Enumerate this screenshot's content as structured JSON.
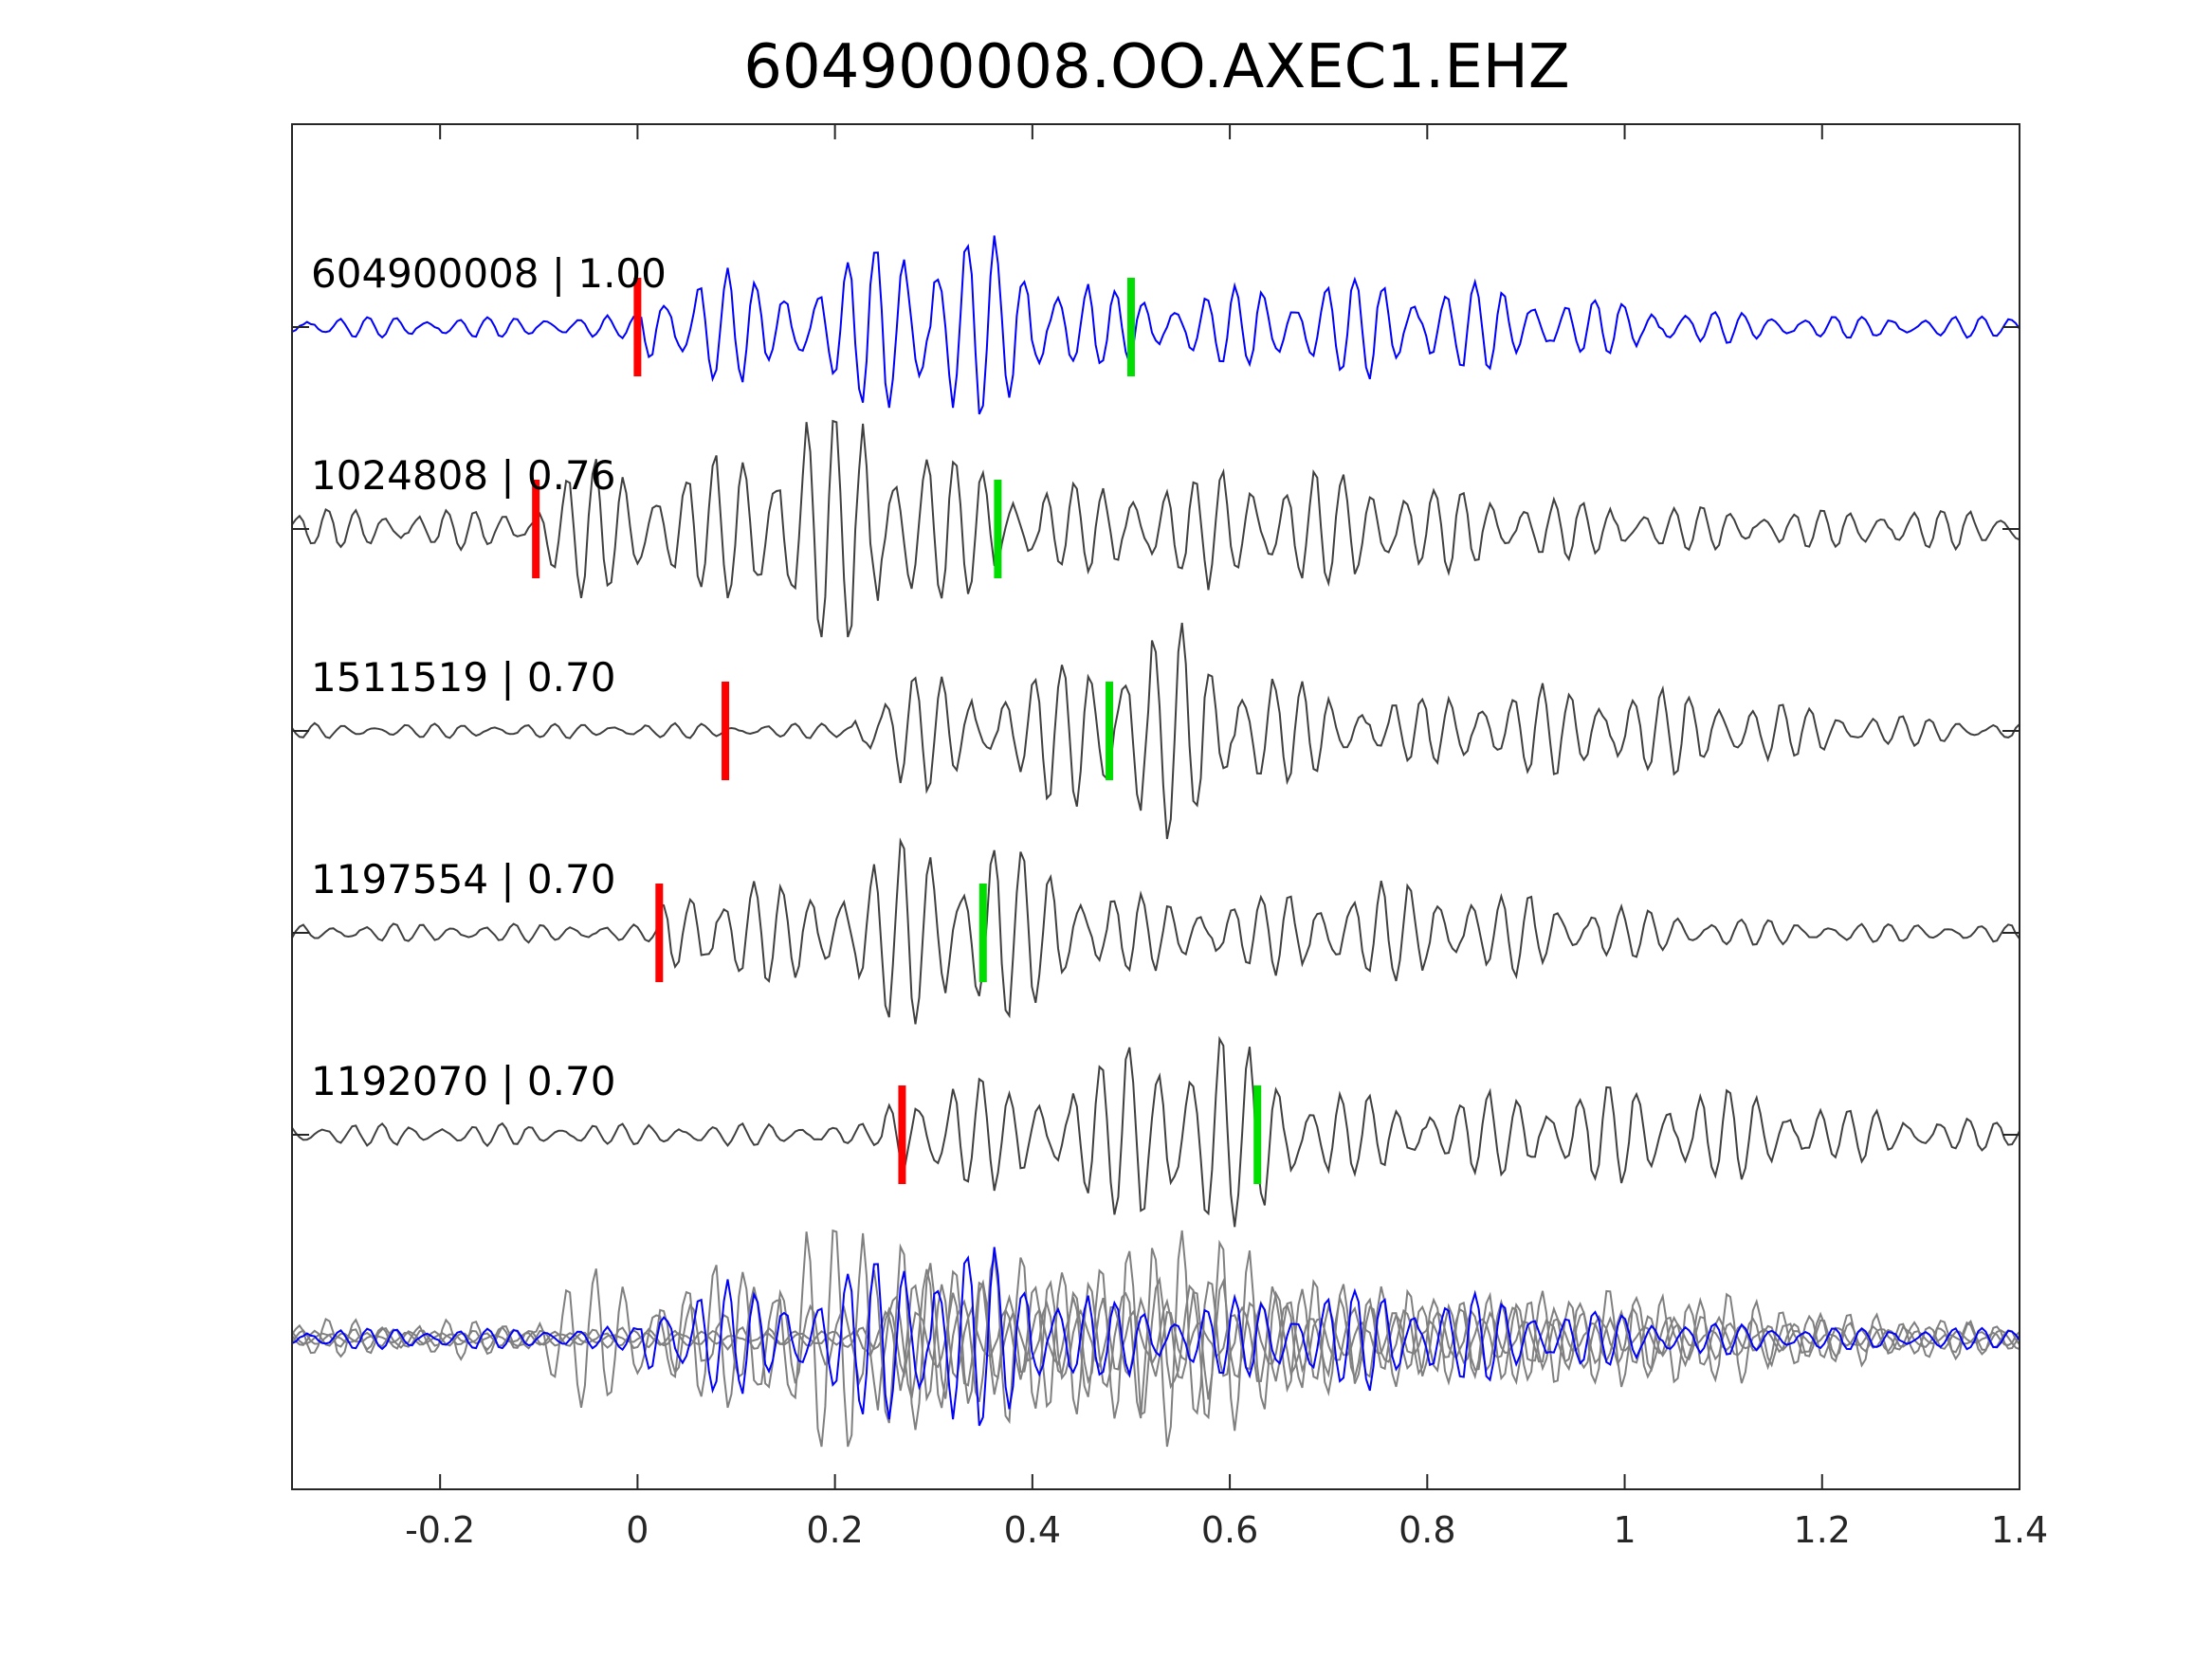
{
  "chart_data": {
    "type": "line",
    "title": "604900008.OO.AXEC1.EHZ",
    "xlabel": "",
    "ylabel": "",
    "xlim": [
      -0.35,
      1.4
    ],
    "x_ticks": [
      -0.2,
      0,
      0.2,
      0.4,
      0.6,
      0.8,
      1,
      1.2,
      1.4
    ],
    "x_tick_labels": [
      "-0.2",
      "0",
      "0.2",
      "0.4",
      "0.6",
      "0.8",
      "1",
      "1.2",
      "1.4"
    ],
    "grid": false,
    "legend": "none",
    "colors": {
      "template": "#0000ff",
      "neighbor": "#404040",
      "stack_neighbor": "#808080",
      "p_pick": "#ff0000",
      "s_pick": "#00dd00"
    },
    "series": [
      {
        "label": "604900008 | 1.00",
        "event_id": "604900008",
        "cc": 1.0,
        "p_pick": 0.0,
        "s_pick": 0.5,
        "onset": 0.0,
        "noise": 0.12,
        "amp": 1.0,
        "role": "template"
      },
      {
        "label": "1024808 | 0.76",
        "event_id": "1024808",
        "cc": 0.76,
        "p_pick": -0.103,
        "s_pick": 0.365,
        "onset": -0.1,
        "noise": 0.22,
        "amp": 1.15,
        "role": "neighbor"
      },
      {
        "label": "1511519 | 0.70",
        "event_id": "1511519",
        "cc": 0.7,
        "p_pick": 0.089,
        "s_pick": 0.478,
        "onset": 0.22,
        "noise": 0.08,
        "amp": 1.1,
        "role": "neighbor"
      },
      {
        "label": "1197554 | 0.70",
        "event_id": "1197554",
        "cc": 0.7,
        "p_pick": 0.022,
        "s_pick": 0.35,
        "onset": 0.02,
        "noise": 0.1,
        "amp": 1.05,
        "role": "neighbor"
      },
      {
        "label": "1192070 | 0.70",
        "event_id": "1192070",
        "cc": 0.7,
        "p_pick": 0.268,
        "s_pick": 0.628,
        "onset": 0.25,
        "noise": 0.12,
        "amp": 1.05,
        "role": "neighbor"
      }
    ],
    "stack": {
      "role": "overlay",
      "description_shown": false
    }
  }
}
